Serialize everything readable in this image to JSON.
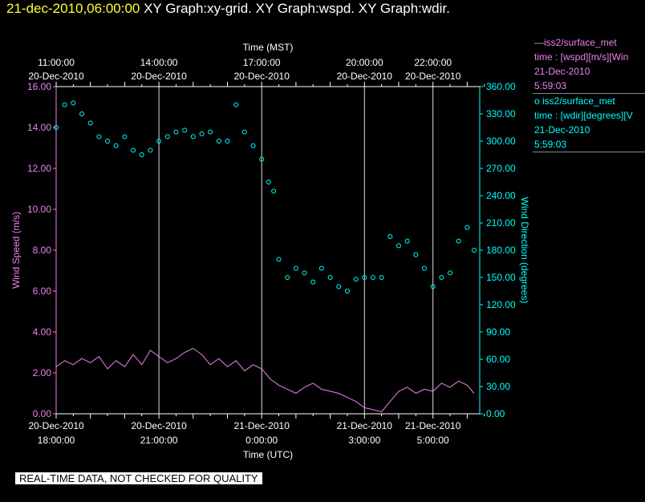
{
  "header": {
    "timestamp": "21-dec-2010,06:00:00",
    "graphs": "XY Graph:xy-grid.  XY Graph:wspd.  XY Graph:wdir."
  },
  "legend": {
    "wspd": {
      "name": "—iss2/surface_met",
      "var": "time : [wspd][m/s][Win",
      "date": "21-Dec-2010",
      "time": "5:59:03",
      "color": "#ee82ee"
    },
    "wdir": {
      "name": "o  iss2/surface_met",
      "var": "time : [wdir][degrees][V",
      "date": "21-Dec-2010",
      "time": "5:59:03",
      "color": "#00ffff"
    }
  },
  "footer": {
    "note": "REAL-TIME DATA, NOT CHECKED FOR QUALITY"
  },
  "chart_data": {
    "type": "line",
    "top_axis_title": "Time (MST)",
    "bottom_axis_title": "Time (UTC)",
    "ylabel": "Wind Speed (m/s)",
    "y2label": "Wind Direction (degrees)",
    "x_range_hours": [
      0,
      12.67
    ],
    "ylim": [
      0,
      16
    ],
    "y2lim": [
      0,
      360
    ],
    "grid": "vertical",
    "top_ticks": [
      {
        "hour": 0,
        "time": "11:00:00",
        "date": "20-Dec-2010"
      },
      {
        "hour": 3,
        "time": "14:00:00",
        "date": "20-Dec-2010"
      },
      {
        "hour": 6,
        "time": "17:00:00",
        "date": "20-Dec-2010"
      },
      {
        "hour": 9,
        "time": "20:00:00",
        "date": "20-Dec-2010"
      },
      {
        "hour": 11,
        "time": "22:00:00",
        "date": "20-Dec-2010"
      }
    ],
    "bottom_ticks": [
      {
        "hour": 0,
        "date": "20-Dec-2010",
        "time": "18:00:00"
      },
      {
        "hour": 3,
        "date": "20-Dec-2010",
        "time": "21:00:00"
      },
      {
        "hour": 6,
        "date": "21-Dec-2010",
        "time": "0:00:00"
      },
      {
        "hour": 9,
        "date": "21-Dec-2010",
        "time": "3:00:00"
      },
      {
        "hour": 11,
        "date": "21-Dec-2010",
        "time": "5:00:00"
      }
    ],
    "y_ticks": [
      "0.00",
      "2.00",
      "4.00",
      "6.00",
      "8.00",
      "10.00",
      "12.00",
      "14.00",
      "16.00"
    ],
    "y2_ticks": [
      "0.00",
      "30.00",
      "60.00",
      "90.00",
      "120.00",
      "150.00",
      "180.00",
      "210.00",
      "240.00",
      "270.00",
      "300.00",
      "330.00",
      "360.00"
    ],
    "series": [
      {
        "name": "iss2/surface_met wspd",
        "style": "line",
        "axis": "left",
        "color": "#ee82ee",
        "x": [
          0,
          0.25,
          0.5,
          0.75,
          1,
          1.25,
          1.5,
          1.75,
          2,
          2.25,
          2.5,
          2.75,
          3,
          3.25,
          3.5,
          3.75,
          4,
          4.25,
          4.5,
          4.75,
          5,
          5.25,
          5.5,
          5.75,
          6,
          6.25,
          6.5,
          6.75,
          7,
          7.25,
          7.5,
          7.75,
          8,
          8.25,
          8.5,
          8.75,
          9,
          9.25,
          9.5,
          9.75,
          10,
          10.25,
          10.5,
          10.75,
          11,
          11.25,
          11.5,
          11.75,
          12,
          12.2
        ],
        "values": [
          2.3,
          2.6,
          2.4,
          2.7,
          2.5,
          2.8,
          2.2,
          2.6,
          2.3,
          2.9,
          2.4,
          3.1,
          2.8,
          2.5,
          2.7,
          3.0,
          3.2,
          2.9,
          2.4,
          2.7,
          2.3,
          2.6,
          2.1,
          2.4,
          2.2,
          1.7,
          1.4,
          1.2,
          1.0,
          1.3,
          1.5,
          1.2,
          1.1,
          1.0,
          0.8,
          0.6,
          0.3,
          0.2,
          0.1,
          0.6,
          1.1,
          1.3,
          1.0,
          1.2,
          1.1,
          1.5,
          1.3,
          1.6,
          1.4,
          1.0
        ]
      },
      {
        "name": "iss2/surface_met wdir",
        "style": "scatter",
        "axis": "right",
        "color": "#00ffff",
        "x": [
          0,
          0.25,
          0.5,
          0.75,
          1,
          1.25,
          1.5,
          1.75,
          2,
          2.25,
          2.5,
          2.75,
          3,
          3.25,
          3.5,
          3.75,
          4,
          4.25,
          4.5,
          4.75,
          5,
          5.25,
          5.5,
          5.75,
          6,
          6.2,
          6.35,
          6.5,
          6.75,
          7,
          7.25,
          7.5,
          7.75,
          8,
          8.25,
          8.5,
          8.75,
          9,
          9.25,
          9.5,
          9.75,
          10,
          10.25,
          10.5,
          10.75,
          11,
          11.25,
          11.5,
          11.75,
          12,
          12.2
        ],
        "values": [
          315,
          340,
          342,
          330,
          320,
          305,
          300,
          295,
          305,
          290,
          285,
          290,
          300,
          305,
          310,
          312,
          305,
          308,
          310,
          300,
          300,
          340,
          310,
          295,
          280,
          255,
          245,
          170,
          150,
          160,
          155,
          145,
          160,
          150,
          140,
          135,
          148,
          150,
          150,
          150,
          195,
          185,
          190,
          175,
          160,
          140,
          150,
          155,
          190,
          205,
          180
        ]
      }
    ]
  }
}
